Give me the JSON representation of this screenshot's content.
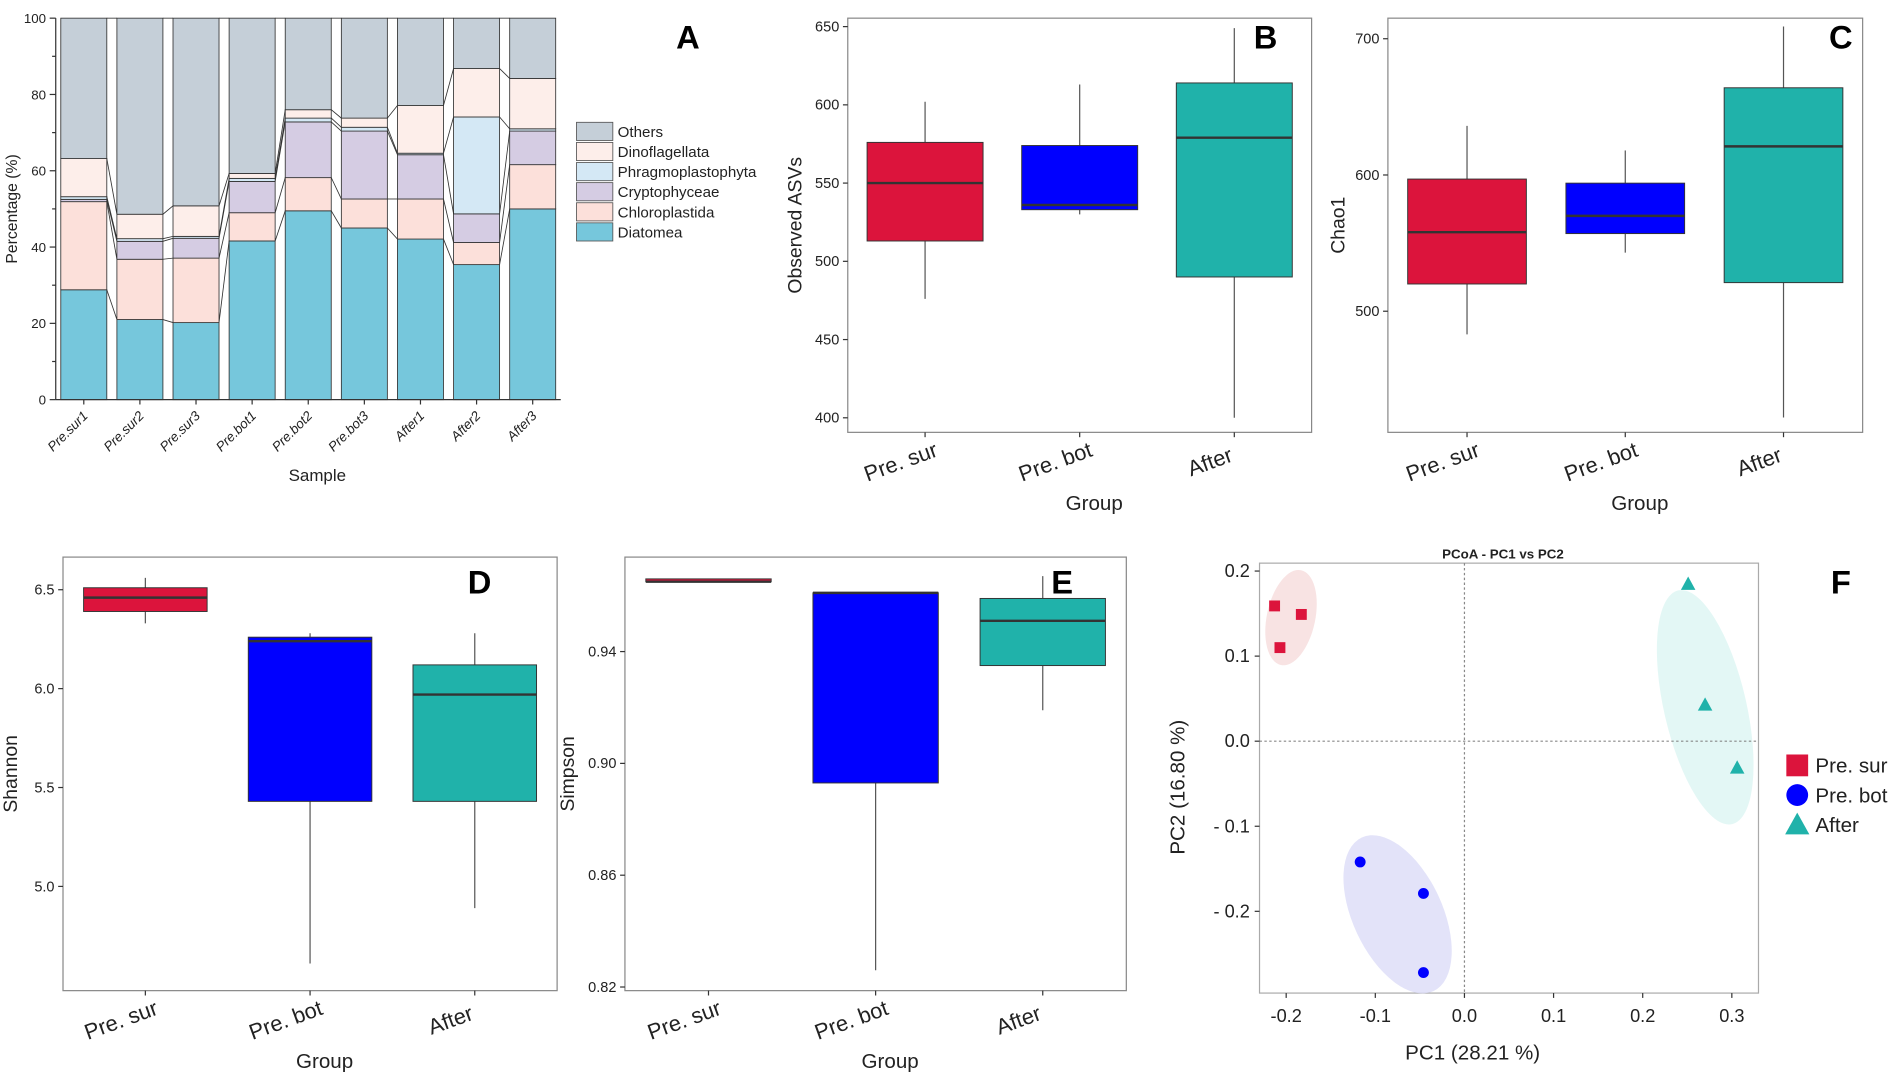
{
  "colors": {
    "pre_sur": "#dc143c",
    "pre_bot": "#0000ff",
    "after": "#20b2aa"
  },
  "chart_data": [
    {
      "panel": "A",
      "type": "bar",
      "stacked": true,
      "xlabel": "Sample",
      "ylabel": "Percentage (%)",
      "ylim": [
        0,
        100
      ],
      "yticks": [
        0,
        20,
        40,
        60,
        80,
        100
      ],
      "categories": [
        "Pre.sur1",
        "Pre.sur2",
        "Pre.sur3",
        "Pre.bot1",
        "Pre.bot2",
        "Pre.bot3",
        "After1",
        "After2",
        "After3"
      ],
      "legend_placement": "right",
      "series": [
        {
          "name": "Diatomea",
          "color": "#76c7dc",
          "values": [
            28.8,
            21.0,
            20.2,
            41.6,
            49.5,
            45.0,
            42.1,
            35.4,
            50.0
          ]
        },
        {
          "name": "Chloroplastida",
          "color": "#fce0da",
          "values": [
            23.1,
            15.8,
            16.9,
            7.4,
            8.7,
            7.6,
            10.5,
            5.8,
            11.6
          ]
        },
        {
          "name": "Cryptophyceae",
          "color": "#d5cce3",
          "values": [
            0.6,
            4.7,
            5.2,
            8.2,
            14.6,
            17.8,
            11.6,
            7.5,
            8.8
          ]
        },
        {
          "name": "Phragmoplastophyta",
          "color": "#d4e8f5",
          "values": [
            0.7,
            0.7,
            0.5,
            0.8,
            1.0,
            1.0,
            0.4,
            25.4,
            0.6
          ]
        },
        {
          "name": "Dinoflagellata",
          "color": "#fdeeea",
          "values": [
            10.0,
            6.4,
            8.0,
            1.3,
            2.2,
            2.4,
            12.5,
            12.7,
            13.2
          ]
        },
        {
          "name": "Others",
          "color": "#c5cfd8",
          "values": [
            36.8,
            51.4,
            49.2,
            40.7,
            24.0,
            26.2,
            22.9,
            13.2,
            15.8
          ]
        }
      ]
    },
    {
      "panel": "B",
      "type": "box",
      "xlabel": "Group",
      "ylabel": "Observed ASVs",
      "yticks": [
        400,
        450,
        500,
        550,
        600,
        650
      ],
      "ylim": [
        390.7,
        655.4
      ],
      "categories": [
        "Pre. sur",
        "Pre. bot",
        "After"
      ],
      "boxes": [
        {
          "min": 476,
          "q1": 513,
          "median": 550,
          "q3": 576,
          "max": 602
        },
        {
          "min": 530,
          "q1": 533,
          "median": 536,
          "q3": 574,
          "max": 613
        },
        {
          "min": 400,
          "q1": 490,
          "median": 579,
          "q3": 614,
          "max": 649
        }
      ]
    },
    {
      "panel": "C",
      "type": "box",
      "xlabel": "Group",
      "ylabel": "Chao1",
      "yticks": [
        500,
        600,
        700
      ],
      "ylim": [
        411.1,
        715.1
      ],
      "categories": [
        "Pre. sur",
        "Pre. bot",
        "After"
      ],
      "boxes": [
        {
          "min": 483,
          "q1": 520,
          "median": 558,
          "q3": 597,
          "max": 636
        },
        {
          "min": 543,
          "q1": 557,
          "median": 570,
          "q3": 594,
          "max": 618
        },
        {
          "min": 422,
          "q1": 521,
          "median": 621,
          "q3": 664,
          "max": 709
        }
      ]
    },
    {
      "panel": "D",
      "type": "box",
      "xlabel": "Group",
      "ylabel": "Shannon",
      "yticks": [
        5.0,
        5.5,
        6.0,
        6.5
      ],
      "ytick_labels": [
        "5.0",
        "5.5",
        "6.0",
        "6.5"
      ],
      "ylim": [
        4.473,
        6.665
      ],
      "categories": [
        "Pre. sur",
        "Pre. bot",
        "After"
      ],
      "boxes": [
        {
          "min": 6.33,
          "q1": 6.39,
          "median": 6.46,
          "q3": 6.51,
          "max": 6.56
        },
        {
          "min": 4.61,
          "q1": 5.43,
          "median": 6.24,
          "q3": 6.26,
          "max": 6.28
        },
        {
          "min": 4.89,
          "q1": 5.43,
          "median": 5.97,
          "q3": 6.12,
          "max": 6.28
        }
      ]
    },
    {
      "panel": "E",
      "type": "box",
      "xlabel": "Group",
      "ylabel": "Simpson",
      "yticks": [
        0.82,
        0.86,
        0.9,
        0.94
      ],
      "ytick_labels": [
        "0.82",
        "0.86",
        "0.90",
        "0.94"
      ],
      "ylim": [
        0.8187,
        0.9738
      ],
      "categories": [
        "Pre. sur",
        "Pre. bot",
        "After"
      ],
      "boxes": [
        {
          "min": 0.965,
          "q1": 0.965,
          "median": 0.965,
          "q3": 0.966,
          "max": 0.966
        },
        {
          "min": 0.826,
          "q1": 0.893,
          "median": 0.961,
          "q3": 0.961,
          "max": 0.961
        },
        {
          "min": 0.919,
          "q1": 0.935,
          "median": 0.951,
          "q3": 0.959,
          "max": 0.967
        }
      ]
    },
    {
      "panel": "F",
      "type": "scatter",
      "title": "PCoA - PC1 vs PC2",
      "xlabel": "PC1 (28.21 %)",
      "ylabel": "PC2 (16.80 %)",
      "xlim": [
        -0.2299,
        0.3299
      ],
      "ylim": [
        -0.2961,
        0.2093
      ],
      "xticks": [
        -0.2,
        -0.1,
        0.0,
        0.1,
        0.2,
        0.3
      ],
      "xtick_labels": [
        "-0.2",
        "-0.1",
        "0.0",
        "0.1",
        "0.2",
        "0.3"
      ],
      "yticks": [
        -0.2,
        -0.1,
        0.0,
        0.1,
        0.2
      ],
      "ytick_labels": [
        "- 0.2",
        "- 0.1",
        "0.0",
        "0.1",
        "0.2"
      ],
      "legend_placement": "right",
      "series": [
        {
          "name": "Pre. sur",
          "marker": "square",
          "color": "#dc143c",
          "points": [
            [
              -0.213,
              0.159
            ],
            [
              -0.183,
              0.149
            ],
            [
              -0.207,
              0.11
            ]
          ]
        },
        {
          "name": "Pre. bot",
          "marker": "circle",
          "color": "#0000ff",
          "points": [
            [
              -0.117,
              -0.142
            ],
            [
              -0.046,
              -0.179
            ],
            [
              -0.046,
              -0.272
            ]
          ]
        },
        {
          "name": "After",
          "marker": "triangle",
          "color": "#20b2aa",
          "points": [
            [
              0.251,
              0.185
            ],
            [
              0.27,
              0.043
            ],
            [
              0.306,
              -0.031
            ]
          ]
        }
      ]
    }
  ]
}
